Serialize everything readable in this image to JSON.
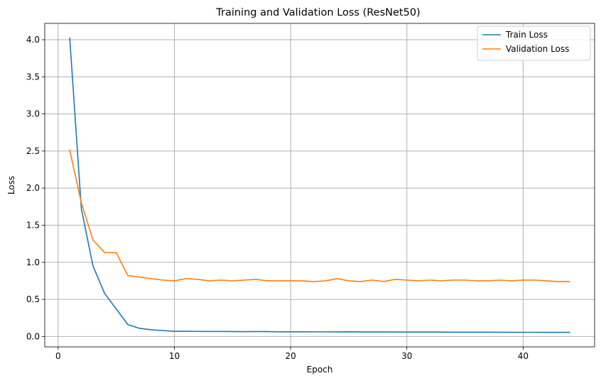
{
  "chart_data": {
    "type": "line",
    "title": "Training and Validation Loss (ResNet50)",
    "xlabel": "Epoch",
    "ylabel": "Loss",
    "xlim": [
      -1.15,
      46.15
    ],
    "ylim": [
      -0.14,
      4.22
    ],
    "xticks": [
      0,
      10,
      20,
      30,
      40
    ],
    "xtick_labels": [
      "0",
      "10",
      "20",
      "30",
      "40"
    ],
    "yticks": [
      0.0,
      0.5,
      1.0,
      1.5,
      2.0,
      2.5,
      3.0,
      3.5,
      4.0
    ],
    "ytick_labels": [
      "0.0",
      "0.5",
      "1.0",
      "1.5",
      "2.0",
      "2.5",
      "3.0",
      "3.5",
      "4.0"
    ],
    "grid": true,
    "legend_position": "top-right",
    "x": [
      1,
      2,
      3,
      4,
      5,
      6,
      7,
      8,
      9,
      10,
      11,
      12,
      13,
      14,
      15,
      16,
      17,
      18,
      19,
      20,
      21,
      22,
      23,
      24,
      25,
      26,
      27,
      28,
      29,
      30,
      31,
      32,
      33,
      34,
      35,
      36,
      37,
      38,
      39,
      40,
      41,
      42,
      43,
      44
    ],
    "series": [
      {
        "name": "Train Loss",
        "color": "#1f77b4",
        "values": [
          4.02,
          1.72,
          0.95,
          0.58,
          0.37,
          0.16,
          0.11,
          0.09,
          0.08,
          0.07,
          0.07,
          0.068,
          0.067,
          0.067,
          0.066,
          0.065,
          0.066,
          0.066,
          0.063,
          0.063,
          0.063,
          0.062,
          0.062,
          0.061,
          0.063,
          0.061,
          0.061,
          0.061,
          0.06,
          0.059,
          0.059,
          0.059,
          0.059,
          0.058,
          0.058,
          0.058,
          0.058,
          0.057,
          0.057,
          0.056,
          0.056,
          0.055,
          0.055,
          0.055
        ]
      },
      {
        "name": "Validation Loss",
        "color": "#ff7f0e",
        "values": [
          2.51,
          1.8,
          1.3,
          1.13,
          1.13,
          0.82,
          0.8,
          0.78,
          0.76,
          0.75,
          0.78,
          0.77,
          0.75,
          0.76,
          0.75,
          0.76,
          0.77,
          0.75,
          0.75,
          0.75,
          0.75,
          0.74,
          0.75,
          0.78,
          0.75,
          0.74,
          0.76,
          0.74,
          0.77,
          0.76,
          0.75,
          0.76,
          0.75,
          0.76,
          0.76,
          0.75,
          0.75,
          0.76,
          0.75,
          0.76,
          0.76,
          0.75,
          0.74,
          0.74
        ]
      }
    ]
  }
}
